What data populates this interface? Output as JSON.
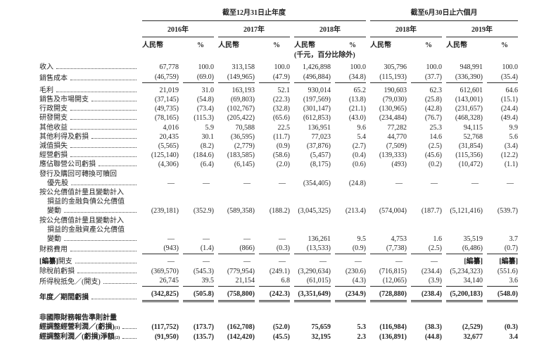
{
  "table": {
    "groups": [
      {
        "title": "截至12月31日止年度"
      },
      {
        "title": "截至6月30日止六個月"
      }
    ],
    "years": [
      "2016年",
      "2017年",
      "2018年",
      "2018年",
      "2019年"
    ],
    "currency_header": "人民幣",
    "percent_header": "%",
    "unit_note": "(千元，百分比除外)",
    "rows": [
      {
        "label_lines": [
          "收入"
        ],
        "leader": true,
        "gap_top": true,
        "values": [
          "67,778",
          "100.0",
          "313,158",
          "100.0",
          "1,426,898",
          "100.0",
          "305,796",
          "100.0",
          "948,991",
          "100.0"
        ]
      },
      {
        "label_lines": [
          "銷售成本"
        ],
        "leader": true,
        "rule": "single",
        "values": [
          "(46,759)",
          "(69.0)",
          "(149,965)",
          "(47.9)",
          "(496,884)",
          "(34.8)",
          "(115,193)",
          "(37.7)",
          "(336,390)",
          "(35.4)"
        ]
      },
      {
        "label_lines": [
          "毛利"
        ],
        "leader": true,
        "gap_top": true,
        "values": [
          "21,019",
          "31.0",
          "163,193",
          "52.1",
          "930,014",
          "65.2",
          "190,603",
          "62.3",
          "612,601",
          "64.6"
        ]
      },
      {
        "label_lines": [
          "銷售及市場開支"
        ],
        "leader": true,
        "values": [
          "(37,145)",
          "(54.8)",
          "(69,803)",
          "(22.3)",
          "(197,569)",
          "(13.8)",
          "(79,030)",
          "(25.8)",
          "(143,001)",
          "(15.1)"
        ]
      },
      {
        "label_lines": [
          "行政開支"
        ],
        "leader": true,
        "values": [
          "(49,735)",
          "(73.4)",
          "(102,767)",
          "(32.8)",
          "(301,147)",
          "(21.1)",
          "(130,965)",
          "(42.8)",
          "(231,657)",
          "(24.4)"
        ]
      },
      {
        "label_lines": [
          "研發開支"
        ],
        "leader": true,
        "values": [
          "(78,165)",
          "(115.3)",
          "(205,422)",
          "(65.6)",
          "(612,853)",
          "(43.0)",
          "(234,484)",
          "(76.7)",
          "(468,328)",
          "(49.4)"
        ]
      },
      {
        "label_lines": [
          "其他收益"
        ],
        "leader": true,
        "values": [
          "4,016",
          "5.9",
          "70,588",
          "22.5",
          "136,951",
          "9.6",
          "77,282",
          "25.3",
          "94,115",
          "9.9"
        ]
      },
      {
        "label_lines": [
          "其他利得及虧損"
        ],
        "leader": true,
        "values": [
          "20,435",
          "30.1",
          "(36,595)",
          "(11.7)",
          "77,023",
          "5.4",
          "44,770",
          "14.6",
          "52,768",
          "5.6"
        ]
      },
      {
        "label_lines": [
          "減值損失"
        ],
        "leader": true,
        "values": [
          "(5,565)",
          "(8.2)",
          "(2,779)",
          "(0.9)",
          "(37,876)",
          "(2.7)",
          "(7,509)",
          "(2.5)",
          "(31,854)",
          "(3.4)"
        ]
      },
      {
        "label_lines": [
          "經營虧損"
        ],
        "leader": true,
        "values": [
          "(125,140)",
          "(184.6)",
          "(183,585)",
          "(58.6)",
          "(5,457)",
          "(0.4)",
          "(139,333)",
          "(45.6)",
          "(115,356)",
          "(12.2)"
        ]
      },
      {
        "label_lines": [
          "應佔聯營公司虧損"
        ],
        "leader": true,
        "values": [
          "(4,306)",
          "(6.4)",
          "(6,145)",
          "(2.0)",
          "(8,175)",
          "(0.6)",
          "(493)",
          "(0.2)",
          "(10,472)",
          "(1.1)"
        ]
      },
      {
        "label_lines": [
          "發行及購回可轉換可贖回",
          "優先股"
        ],
        "leader": true,
        "values": [
          "—",
          "—",
          "—",
          "—",
          "(354,405)",
          "(24.8)",
          "—",
          "—",
          "—",
          "—"
        ]
      },
      {
        "label_lines": [
          "按公允價值計量且變動計入",
          "損益的金融負債公允價值",
          "變動"
        ],
        "leader": true,
        "values": [
          "(239,181)",
          "(352.9)",
          "(589,358)",
          "(188.2)",
          "(3,045,325)",
          "(213.4)",
          "(574,004)",
          "(187.7)",
          "(5,121,416)",
          "(539.7)"
        ]
      },
      {
        "label_lines": [
          "按公允價值計量且變動計入",
          "損益的金融資產公允價值",
          "變動"
        ],
        "leader": true,
        "values": [
          "—",
          "—",
          "—",
          "—",
          "136,261",
          "9.5",
          "4,753",
          "1.6",
          "35,519",
          "3.7"
        ]
      },
      {
        "label_lines": [
          "財務費用"
        ],
        "leader": true,
        "rule": "single",
        "values": [
          "(943)",
          "(1.4)",
          "(866)",
          "(0.3)",
          "(13,533)",
          "(0.9)",
          "(7,738)",
          "(2.5)",
          "(6,486)",
          "(0.7)"
        ]
      },
      {
        "label_lines": [
          "[編纂]開支"
        ],
        "leader": true,
        "gap_top": true,
        "values": [
          "—",
          "—",
          "—",
          "—",
          "—",
          "—",
          "—",
          "—",
          "[編纂]",
          "[編纂]"
        ]
      },
      {
        "label_lines": [
          "除稅前虧損"
        ],
        "leader": true,
        "values": [
          "(369,570)",
          "(545.3)",
          "(779,954)",
          "(249.1)",
          "(3,290,634)",
          "(230.6)",
          "(716,815)",
          "(234.4)",
          "(5,234,323)",
          "(551.6)"
        ]
      },
      {
        "label_lines": [
          "所得稅抵免／(開支)"
        ],
        "leader": true,
        "rule": "single",
        "values": [
          "26,745",
          "39.5",
          "21,154",
          "6.8",
          "(61,015)",
          "(4.3)",
          "(12,065)",
          "(3.9)",
          "34,140",
          "3.6"
        ]
      },
      {
        "label_lines": [
          "年度／期間虧損"
        ],
        "leader": true,
        "bold": true,
        "gap_top": true,
        "rule": "double",
        "values": [
          "(342,825)",
          "(505.8)",
          "(758,800)",
          "(242.3)",
          "(3,351,649)",
          "(234.9)",
          "(728,880)",
          "(238.4)",
          "(5,200,183)",
          "(548.0)"
        ]
      },
      {
        "spacer": true
      },
      {
        "label_lines": [
          "非國際財務報告準則計量"
        ],
        "bold": true,
        "section_header": true
      },
      {
        "label_lines": [
          "經調整經營利潤／(虧損)"
        ],
        "sup": "(1)",
        "leader": true,
        "bold": true,
        "values": [
          "(117,752)",
          "(173.7)",
          "(162,708)",
          "(52.0)",
          "75,659",
          "5.3",
          "(116,984)",
          "(38.3)",
          "(2,529)",
          "(0.3)"
        ]
      },
      {
        "label_lines": [
          "經調整利潤／(虧損)淨額"
        ],
        "sup": "(2)",
        "leader": true,
        "bold": true,
        "values": [
          "(91,950)",
          "(135.7)",
          "(142,420)",
          "(45.5)",
          "32,195",
          "2.3",
          "(136,891)",
          "(44.8)",
          "32,677",
          "3.4"
        ]
      }
    ]
  }
}
